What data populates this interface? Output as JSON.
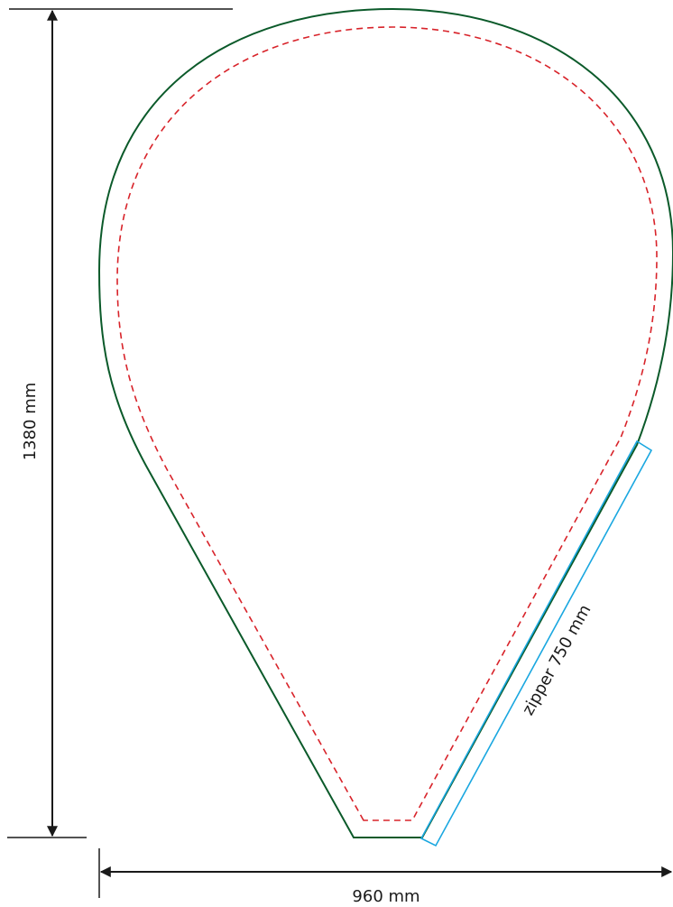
{
  "dimensions": {
    "height_label": "1380 mm",
    "width_label": "960 mm",
    "zipper_label": "zipper 750 mm"
  },
  "colors": {
    "outline": "#0b5a2a",
    "safe_line": "#d8232a",
    "zipper": "#1aa7e0",
    "dimension": "#1a1a1a"
  }
}
